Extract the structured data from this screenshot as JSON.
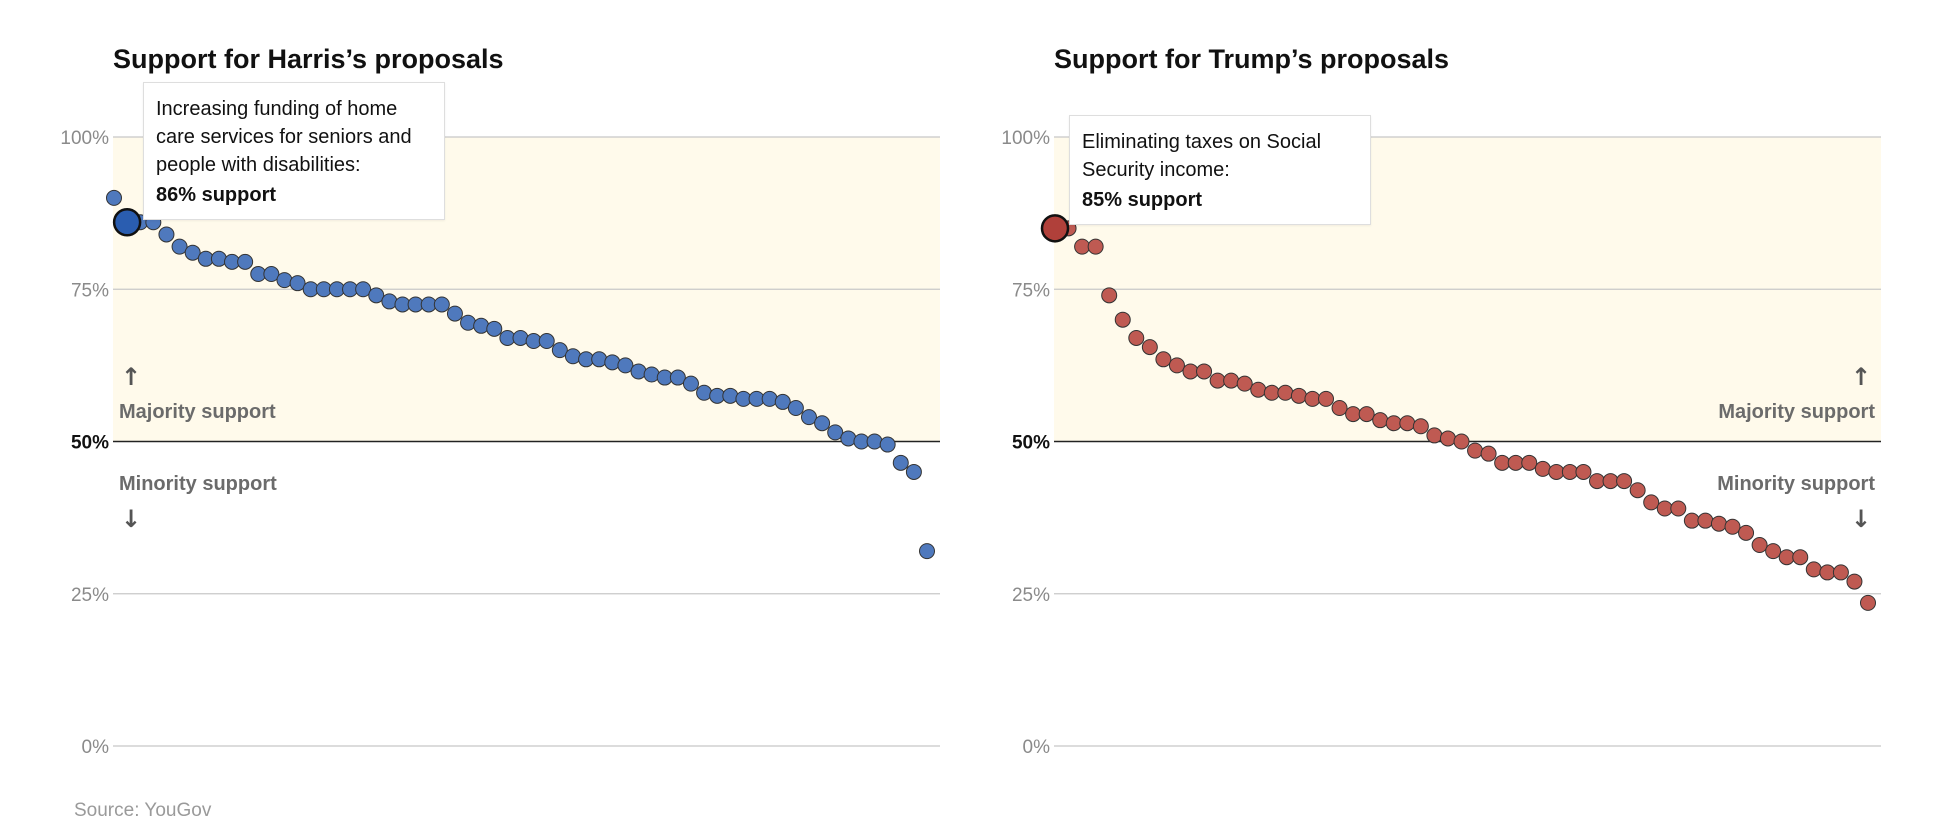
{
  "source": "Source: YouGov",
  "chart_data": [
    {
      "type": "scatter",
      "title": "Support for Harris’s proposals",
      "color": "#4f79bd",
      "highlight_color": "#2a5db0",
      "ylim": [
        0,
        100
      ],
      "yticks": [
        "100%",
        "75%",
        "50%",
        "25%",
        "0%"
      ],
      "majority_label": "Majority support",
      "minority_label": "Minority support",
      "label_side": "left",
      "highlight_index": 1,
      "tooltip": {
        "text": "Increasing funding of home care services for seniors and people with disabilities:",
        "value": "86% support"
      },
      "values": [
        90,
        86,
        86,
        86,
        84,
        82,
        81,
        80,
        80,
        79.5,
        79.5,
        77.5,
        77.5,
        76.5,
        76,
        75,
        75,
        75,
        75,
        75,
        74,
        73,
        72.5,
        72.5,
        72.5,
        72.5,
        71,
        69.5,
        69,
        68.5,
        67,
        67,
        66.5,
        66.5,
        65,
        64,
        63.5,
        63.5,
        63,
        62.5,
        61.5,
        61,
        60.5,
        60.5,
        59.5,
        58,
        57.5,
        57.5,
        57,
        57,
        57,
        56.5,
        55.5,
        54,
        53,
        51.5,
        50.5,
        50,
        50,
        49.5,
        46.5,
        45,
        32
      ]
    },
    {
      "type": "scatter",
      "title": "Support for Trump’s proposals",
      "color": "#bf5a52",
      "highlight_color": "#b0403a",
      "ylim": [
        0,
        100
      ],
      "yticks": [
        "100%",
        "75%",
        "50%",
        "25%",
        "0%"
      ],
      "majority_label": "Majority support",
      "minority_label": "Minority support",
      "label_side": "right",
      "highlight_index": 0,
      "tooltip": {
        "text": "Eliminating taxes on Social Security income:",
        "value": "85% support"
      },
      "values": [
        85,
        85,
        82,
        82,
        74,
        70,
        67,
        65.5,
        63.5,
        62.5,
        61.5,
        61.5,
        60,
        60,
        59.5,
        58.5,
        58,
        58,
        57.5,
        57,
        57,
        55.5,
        54.5,
        54.5,
        53.5,
        53,
        53,
        52.5,
        51,
        50.5,
        50,
        48.5,
        48,
        46.5,
        46.5,
        46.5,
        45.5,
        45,
        45,
        45,
        43.5,
        43.5,
        43.5,
        42,
        40,
        39,
        39,
        37,
        37,
        36.5,
        36,
        35,
        33,
        32,
        31,
        31,
        29,
        28.5,
        28.5,
        27,
        23.5
      ]
    }
  ]
}
